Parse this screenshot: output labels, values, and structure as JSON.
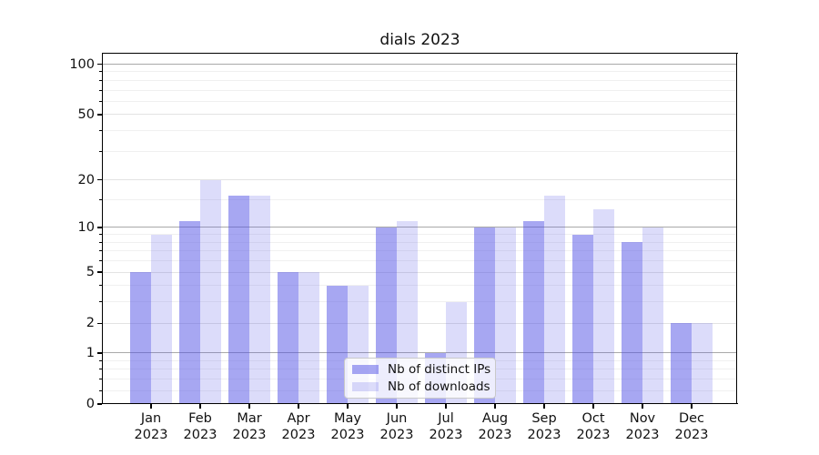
{
  "title": "dials 2023",
  "chart_data": {
    "type": "bar",
    "title": "dials 2023",
    "categories": [
      "Jan",
      "Feb",
      "Mar",
      "Apr",
      "May",
      "Jun",
      "Jul",
      "Aug",
      "Sep",
      "Oct",
      "Nov",
      "Dec"
    ],
    "year_label": "2023",
    "series": [
      {
        "name": "Nb of distinct IPs",
        "color": "rgba(80,80,230,0.5)",
        "values": [
          5,
          11,
          16,
          5,
          4,
          10,
          1,
          10,
          11,
          9,
          8,
          2
        ]
      },
      {
        "name": "Nb of downloads",
        "color": "rgba(80,80,230,0.2)",
        "values": [
          9,
          20,
          16,
          5,
          4,
          11,
          3,
          10,
          16,
          13,
          10,
          2
        ]
      }
    ],
    "yscale": "log1p",
    "ylim": [
      0,
      115.5
    ],
    "yticks_labeled": [
      0,
      1,
      2,
      5,
      10,
      20,
      50,
      100
    ],
    "yticks_major_grid": [
      1,
      10,
      100
    ],
    "yticks_medium_grid": [
      2,
      5,
      20,
      50
    ],
    "yticks_minor_grid": [
      0.2,
      0.4,
      0.6,
      0.8,
      3,
      4,
      6,
      7,
      8,
      9,
      15,
      30,
      40,
      60,
      70,
      80,
      90
    ],
    "grid": true,
    "legend_position": "lower center",
    "colors": {
      "bar_ips": "rgba(80,80,230,0.5)",
      "bar_downloads": "rgba(80,80,230,0.2)",
      "grid_major": "#a9a9a9",
      "grid_medium": "#e3e3e3",
      "grid_minor": "#f0f0f0",
      "spine": "#000000"
    }
  },
  "legend": {
    "items": [
      {
        "label": "Nb of distinct IPs"
      },
      {
        "label": "Nb of downloads"
      }
    ]
  }
}
